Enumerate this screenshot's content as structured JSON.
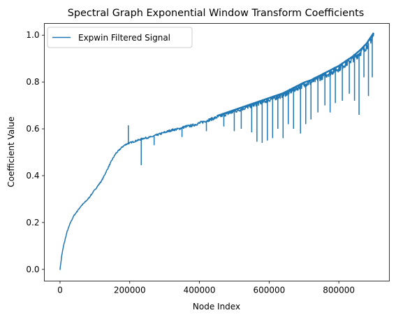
{
  "chart_data": {
    "type": "line",
    "title": "Spectral Graph Exponential Window Transform Coefficients",
    "xlabel": "Node Index",
    "ylabel": "Coefficient Value",
    "xlim": [
      -45000,
      945000
    ],
    "ylim": [
      -0.05,
      1.05
    ],
    "x_ticks": [
      0,
      200000,
      400000,
      600000,
      800000
    ],
    "x_tick_labels": [
      "0",
      "200000",
      "400000",
      "600000",
      "800000"
    ],
    "y_ticks": [
      0.0,
      0.2,
      0.4,
      0.6,
      0.8,
      1.0
    ],
    "y_tick_labels": [
      "0.0",
      "0.2",
      "0.4",
      "0.6",
      "0.8",
      "1.0"
    ],
    "grid": false,
    "legend_position": "upper-left",
    "series": [
      {
        "name": "Expwin Filtered Signal",
        "color": "#1f77b4",
        "x": [
          0,
          5000,
          10000,
          20000,
          30000,
          40000,
          50000,
          60000,
          70000,
          80000,
          90000,
          100000,
          110000,
          120000,
          130000,
          140000,
          150000,
          160000,
          170000,
          180000,
          190000,
          200000,
          220000,
          240000,
          260000,
          280000,
          300000,
          320000,
          340000,
          360000,
          380000,
          400000,
          420000,
          440000,
          460000,
          480000,
          500000,
          520000,
          540000,
          560000,
          580000,
          600000,
          620000,
          640000,
          660000,
          680000,
          700000,
          720000,
          740000,
          760000,
          780000,
          800000,
          820000,
          840000,
          860000,
          880000,
          900000
        ],
        "values": [
          0.0,
          0.06,
          0.1,
          0.16,
          0.2,
          0.23,
          0.25,
          0.27,
          0.285,
          0.3,
          0.32,
          0.34,
          0.36,
          0.38,
          0.41,
          0.44,
          0.47,
          0.495,
          0.51,
          0.525,
          0.535,
          0.54,
          0.55,
          0.56,
          0.565,
          0.575,
          0.585,
          0.595,
          0.6,
          0.61,
          0.615,
          0.625,
          0.635,
          0.645,
          0.655,
          0.665,
          0.675,
          0.685,
          0.695,
          0.705,
          0.715,
          0.725,
          0.735,
          0.745,
          0.76,
          0.775,
          0.79,
          0.8,
          0.815,
          0.83,
          0.845,
          0.86,
          0.88,
          0.9,
          0.925,
          0.955,
          1.0
        ],
        "spikes": [
          {
            "x": 196000,
            "y": 0.615
          },
          {
            "x": 233000,
            "y": 0.445
          },
          {
            "x": 270000,
            "y": 0.53
          },
          {
            "x": 350000,
            "y": 0.565
          },
          {
            "x": 420000,
            "y": 0.59
          },
          {
            "x": 470000,
            "y": 0.61
          },
          {
            "x": 500000,
            "y": 0.59
          },
          {
            "x": 520000,
            "y": 0.6
          },
          {
            "x": 550000,
            "y": 0.585
          },
          {
            "x": 565000,
            "y": 0.545
          },
          {
            "x": 580000,
            "y": 0.54
          },
          {
            "x": 595000,
            "y": 0.55
          },
          {
            "x": 610000,
            "y": 0.56
          },
          {
            "x": 625000,
            "y": 0.6
          },
          {
            "x": 640000,
            "y": 0.56
          },
          {
            "x": 655000,
            "y": 0.62
          },
          {
            "x": 670000,
            "y": 0.6
          },
          {
            "x": 690000,
            "y": 0.58
          },
          {
            "x": 705000,
            "y": 0.62
          },
          {
            "x": 720000,
            "y": 0.64
          },
          {
            "x": 740000,
            "y": 0.67
          },
          {
            "x": 760000,
            "y": 0.7
          },
          {
            "x": 775000,
            "y": 0.67
          },
          {
            "x": 790000,
            "y": 0.71
          },
          {
            "x": 810000,
            "y": 0.72
          },
          {
            "x": 830000,
            "y": 0.75
          },
          {
            "x": 845000,
            "y": 0.72
          },
          {
            "x": 858000,
            "y": 0.66
          },
          {
            "x": 872000,
            "y": 0.82
          },
          {
            "x": 885000,
            "y": 0.74
          },
          {
            "x": 896000,
            "y": 0.82
          }
        ]
      }
    ]
  }
}
